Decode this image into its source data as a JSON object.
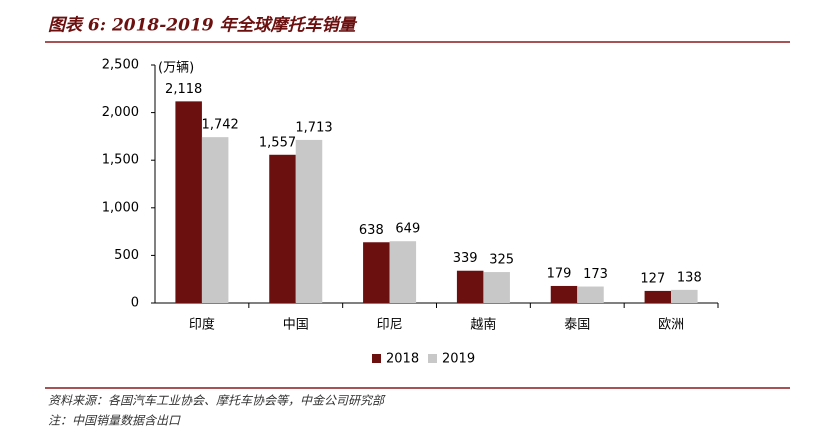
{
  "chart_data": {
    "type": "bar",
    "title": "图表 6: 2018-2019 年全球摩托车销量",
    "y_unit": "(万辆)",
    "categories": [
      "印度",
      "中国",
      "印尼",
      "越南",
      "泰国",
      "欧洲"
    ],
    "series": [
      {
        "name": "2018",
        "color": "#6b0f0f",
        "values": [
          2118,
          1557,
          638,
          339,
          179,
          127
        ],
        "value_labels": [
          "2,118",
          "1,557",
          "638",
          "339",
          "179",
          "127"
        ]
      },
      {
        "name": "2019",
        "color": "#c8c8c8",
        "values": [
          1742,
          1713,
          649,
          325,
          173,
          138
        ],
        "value_labels": [
          "1,742",
          "1,713",
          "649",
          "325",
          "173",
          "138"
        ]
      }
    ],
    "ylim": [
      0,
      2500
    ],
    "yticks": [
      0,
      500,
      {
        "value": 1000,
        "label": "1,000"
      },
      {
        "value": 1500,
        "label": "1,500"
      },
      {
        "value": 2000,
        "label": "2,000"
      },
      {
        "value": 2500,
        "label": "2,500"
      }
    ],
    "legend": "bottom",
    "notes": [
      "资料来源：各国汽车工业协会、摩托车协会等，中金公司研究部",
      "注：中国销量数据含出口"
    ]
  }
}
